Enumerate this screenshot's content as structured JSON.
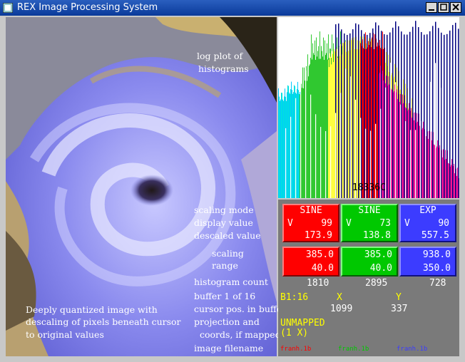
{
  "window": {
    "title": "REX Image Processing System",
    "icon": "app-icon",
    "controls": [
      "minimize-icon",
      "maximize-icon",
      "close-icon"
    ]
  },
  "annotations": {
    "log_plot": [
      "log plot of",
      "histograms"
    ],
    "scaling_mode": "scaling mode",
    "display_value": "display value",
    "descaled_value": "descaled value",
    "scaling_range": [
      "scaling",
      "range"
    ],
    "histogram_count": "histogram count",
    "buffer": "buffer 1 of 16",
    "cursor_pos": "cursor pos. in buffer",
    "projection": [
      "projection and",
      "coords, if mapped"
    ],
    "filename": "image filename",
    "quantized": [
      "Deeply quantized image with",
      "descaling of pixels beneath cursor",
      "to original values"
    ]
  },
  "histogram": {
    "count_label": "18336C"
  },
  "channels": [
    {
      "name": "red",
      "color": "#ff0000",
      "mode": "SINE",
      "v_label": "V",
      "display_value": "99",
      "descaled_value": "173.9",
      "range_max": "385.0",
      "range_min": "40.0",
      "hist_count": "1810",
      "filename": "franh.1b"
    },
    {
      "name": "green",
      "color": "#00c800",
      "mode": "SINE",
      "v_label": "V",
      "display_value": "73",
      "descaled_value": "138.8",
      "range_max": "385.0",
      "range_min": "40.0",
      "hist_count": "2895",
      "filename": "franh.1b"
    },
    {
      "name": "blue",
      "color": "#3c3cff",
      "mode": "EXP",
      "v_label": "V",
      "display_value": "90",
      "descaled_value": "557.5",
      "range_max": "938.0",
      "range_min": "350.0",
      "hist_count": "728",
      "filename": "franh.1b"
    }
  ],
  "buffer_info": {
    "buffer": "B1:16",
    "x_label": "X",
    "y_label": "Y",
    "x_value": "1099",
    "y_value": "337"
  },
  "projection": {
    "status": "UNMAPPED",
    "zoom": "(1 X)"
  },
  "colors": {
    "yellow": "#ffff00",
    "white": "#ffffff",
    "panel_bg": "#7a7a7a"
  }
}
